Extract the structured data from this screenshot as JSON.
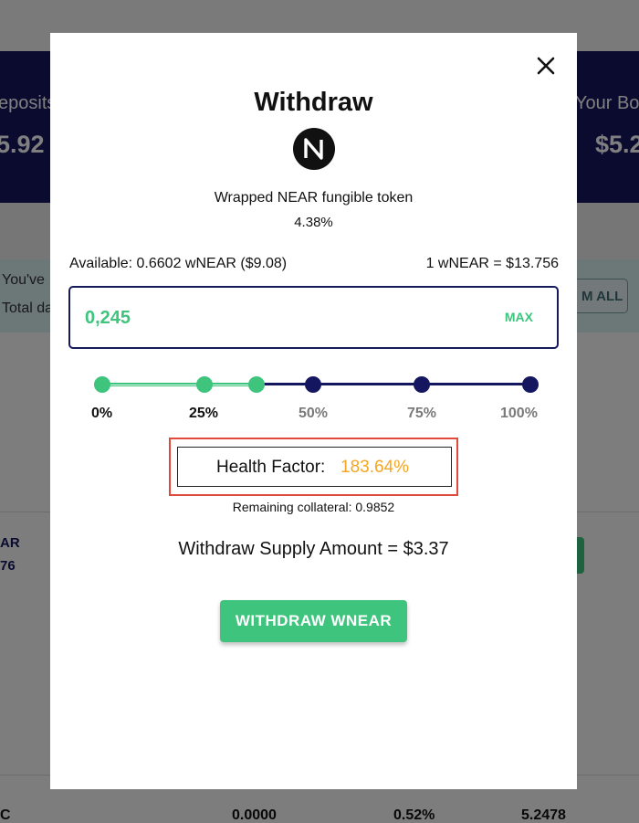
{
  "background": {
    "deposits_label": "eposits",
    "deposits_value": "5.92",
    "borrowed_label": "Your Bor",
    "borrowed_value": "$5.2",
    "notice_line1": "You've",
    "notice_line2": "Total da",
    "claim_button": "M ALL",
    "row_token": "AR",
    "row_value": "76",
    "footer_cut": "C",
    "footer_values": [
      "0.0000",
      "0.52%",
      "5.2478"
    ]
  },
  "modal": {
    "title": "Withdraw",
    "close_icon": "close-icon",
    "token": {
      "logo_icon": "near-logo-icon",
      "name": "Wrapped NEAR fungible token",
      "apy": "4.38%"
    },
    "available": "Available: 0.6602 wNEAR ($9.08)",
    "rate": "1 wNEAR = $13.756",
    "amount": {
      "value": "0,245",
      "max_label": "MAX"
    },
    "slider": {
      "level_percent": 37,
      "marks": [
        "0%",
        "25%",
        "50%",
        "75%",
        "100%"
      ]
    },
    "health_factor": {
      "label": "Health Factor:",
      "value": "183.64%"
    },
    "remaining_collateral": "Remaining collateral: 0.9852",
    "withdraw_amount": "Withdraw Supply Amount = $3.37",
    "submit_label": "WITHDRAW WNEAR"
  },
  "colors": {
    "accent_green": "#3fc47e",
    "navy": "#14175f",
    "health_orange": "#f5a623",
    "highlight_red": "#e04a3c"
  }
}
